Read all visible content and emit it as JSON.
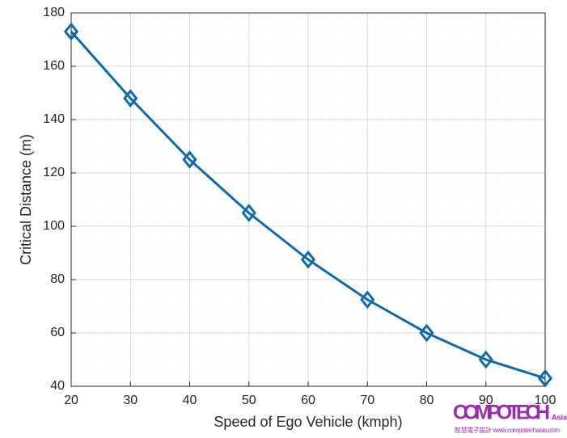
{
  "chart_data": {
    "type": "line",
    "xlabel": "Speed of Ego Vehicle (kmph)",
    "ylabel": "Critical Distance (m)",
    "x": [
      20,
      30,
      40,
      50,
      60,
      70,
      80,
      90,
      100
    ],
    "series": [
      {
        "color": "#0e6aa8",
        "marker": "diamond",
        "values": [
          173,
          148,
          125,
          105,
          87.5,
          72.5,
          60,
          50,
          43
        ]
      }
    ],
    "xlim": [
      20,
      100
    ],
    "xticks": [
      20,
      30,
      40,
      50,
      60,
      70,
      80,
      90,
      100
    ],
    "ylim": [
      40,
      180
    ],
    "yticks": [
      40,
      60,
      80,
      100,
      120,
      140,
      160,
      180
    ],
    "grid": true,
    "minor_grid": true
  },
  "watermark": {
    "brand": "COMPOTECH",
    "region": "Asia",
    "tagline": "智慧電子設計 www.compotechasia.com"
  }
}
